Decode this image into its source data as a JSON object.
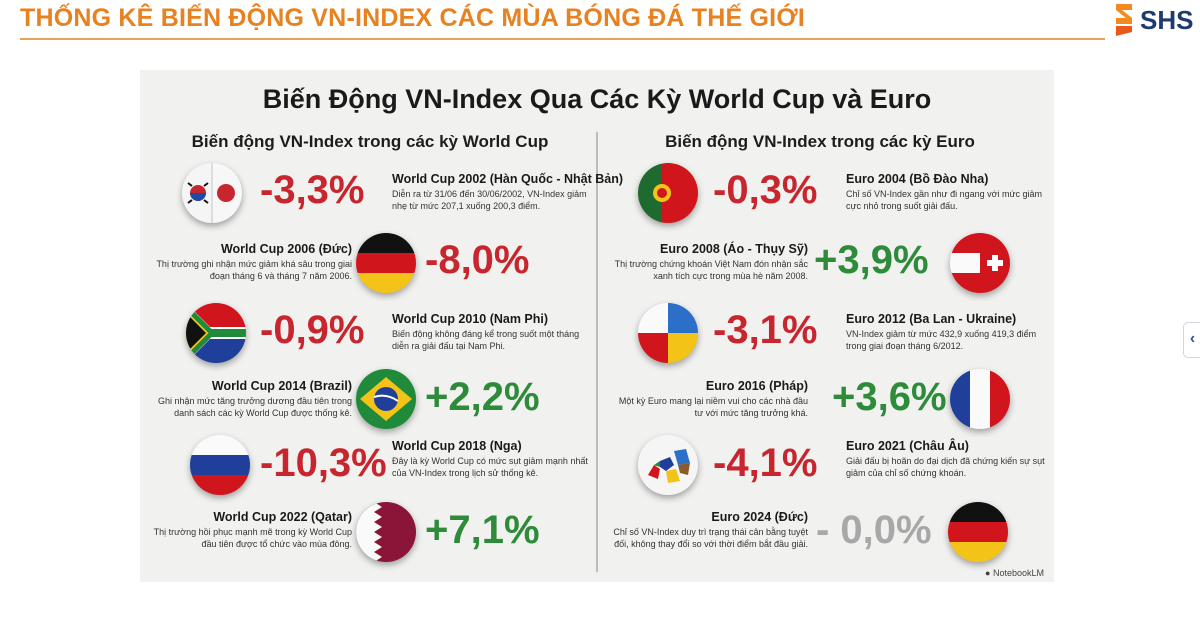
{
  "header": {
    "title": "THỐNG KÊ BIẾN ĐỘNG VN-INDEX CÁC MÙA BÓNG ĐÁ THẾ GIỚI",
    "logo_text": "SHS",
    "accent_color": "#e8811f",
    "side_tab_glyph": "‹"
  },
  "infographic": {
    "title": "Biến Động VN-Index Qua Các Kỳ World Cup và Euro",
    "watermark": "NotebookLM",
    "world_cup": {
      "heading": "Biến động VN-Index trong các kỳ World Cup",
      "items": [
        {
          "title": "World Cup 2002 (Hàn Quốc - Nhật Bản)",
          "change": "-3,3%",
          "trend": "down",
          "flag": "korea-japan",
          "text": "Diễn ra từ 31/06 đến 30/06/2002, VN-Index giảm nhẹ từ mức 207,1 xuống 200,3 điểm."
        },
        {
          "title": "World Cup 2006 (Đức)",
          "change": "-8,0%",
          "trend": "down",
          "flag": "germany",
          "text": "Thị trường ghi nhận mức giảm khá sâu trong giai đoạn tháng 6 và tháng 7 năm 2006."
        },
        {
          "title": "World Cup 2010 (Nam Phi)",
          "change": "-0,9%",
          "trend": "down",
          "flag": "south-africa",
          "text": "Biến động không đáng kể trong suốt một tháng diễn ra giải đấu tại Nam Phi."
        },
        {
          "title": "World Cup 2014 (Brazil)",
          "change": "+2,2%",
          "trend": "up",
          "flag": "brazil",
          "text": "Ghi nhận mức tăng trưởng dương đầu tiên trong danh sách các kỳ World Cup được thống kê."
        },
        {
          "title": "World Cup 2018 (Nga)",
          "change": "-10,3%",
          "trend": "down",
          "flag": "russia",
          "text": "Đây là kỳ World Cup có mức sụt giảm mạnh nhất của VN-Index trong lịch sử thống kê."
        },
        {
          "title": "World Cup 2022 (Qatar)",
          "change": "+7,1%",
          "trend": "up",
          "flag": "qatar",
          "text": "Thị trường hồi phục mạnh mẽ trong kỳ World Cup đầu tiên được tổ chức vào mùa đông."
        }
      ]
    },
    "euro": {
      "heading": "Biến động VN-Index trong các kỳ Euro",
      "items": [
        {
          "title": "Euro 2004 (Bồ Đào Nha)",
          "change": "-0,3%",
          "trend": "down",
          "flag": "portugal",
          "text": "Chỉ số VN-Index gần như đi ngang với mức giảm cực nhỏ trong suốt giải đấu."
        },
        {
          "title": "Euro 2008 (Áo - Thụy Sỹ)",
          "change": "+3,9%",
          "trend": "up",
          "flag": "austria-switzerland",
          "text": "Thị trường chứng khoán Việt Nam đón nhận sắc xanh tích cực trong mùa hè năm 2008."
        },
        {
          "title": "Euro 2012 (Ba Lan - Ukraine)",
          "change": "-3,1%",
          "trend": "down",
          "flag": "poland-ukraine",
          "text": "VN-Index giảm từ mức 432,9 xuống 419,3 điểm trong giai đoạn tháng 6/2012."
        },
        {
          "title": "Euro 2016 (Pháp)",
          "change": "+3,6%",
          "trend": "up",
          "flag": "france",
          "text": "Một kỳ Euro mang lại niềm vui cho các nhà đầu tư với mức tăng trưởng khá."
        },
        {
          "title": "Euro 2021 (Châu Âu)",
          "change": "-4,1%",
          "trend": "down",
          "flag": "europe-map",
          "text": "Giải đấu bị hoãn do đại dịch đã chứng kiến sự sụt giảm của chỉ số chứng khoán."
        },
        {
          "title": "Euro 2024 (Đức)",
          "change": "- 0,0%",
          "trend": "flat",
          "flag": "germany",
          "text": "Chỉ số VN-Index duy trì trạng thái cân bằng tuyệt đối, không thay đổi so với thời điểm bắt đầu giải."
        }
      ]
    },
    "colors": {
      "negative": "#c8262e",
      "positive": "#2e8b3a",
      "flat": "#a8a8a8"
    }
  }
}
